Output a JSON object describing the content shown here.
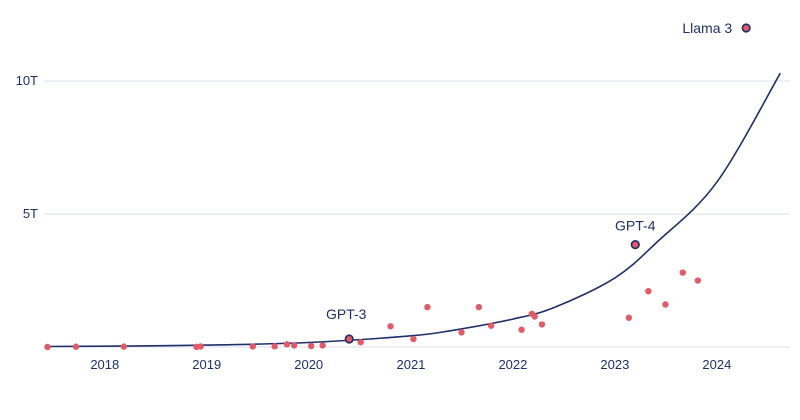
{
  "chart_data": {
    "type": "scatter",
    "title": "",
    "xlabel": "",
    "ylabel": "",
    "x_axis": {
      "type": "date",
      "range": [
        "2017-06-01",
        "2024-09-01"
      ],
      "ticks": [
        {
          "value": "2018-01-01",
          "label": "2018"
        },
        {
          "value": "2019-01-01",
          "label": "2019"
        },
        {
          "value": "2020-01-01",
          "label": "2020"
        },
        {
          "value": "2021-01-01",
          "label": "2021"
        },
        {
          "value": "2022-01-01",
          "label": "2022"
        },
        {
          "value": "2023-01-01",
          "label": "2023"
        },
        {
          "value": "2024-01-01",
          "label": "2024"
        }
      ]
    },
    "y_axis": {
      "range": [
        0,
        12000000000000
      ],
      "ticks": [
        {
          "value": 5000000000000,
          "label": "5T"
        },
        {
          "value": 10000000000000,
          "label": "10T"
        }
      ],
      "gridlines": true
    },
    "grid": true,
    "colors": {
      "points": "#e05a68",
      "highlight_fill": "#e05a68",
      "highlight_stroke": "#1f2f6b",
      "trend": "#1f2f6b",
      "grid": "#d9dfea",
      "text": "#1f2f6b"
    },
    "points": [
      {
        "x": "2017-06-10",
        "y": 0
      },
      {
        "x": "2017-09-20",
        "y": 10000000000
      },
      {
        "x": "2018-03-10",
        "y": 15000000000
      },
      {
        "x": "2018-11-25",
        "y": 5000000000
      },
      {
        "x": "2018-12-10",
        "y": 20000000000
      },
      {
        "x": "2019-06-15",
        "y": 20000000000
      },
      {
        "x": "2019-09-01",
        "y": 25000000000
      },
      {
        "x": "2019-10-15",
        "y": 100000000000
      },
      {
        "x": "2019-11-10",
        "y": 60000000000
      },
      {
        "x": "2020-01-10",
        "y": 40000000000
      },
      {
        "x": "2020-02-20",
        "y": 60000000000
      },
      {
        "x": "2020-07-05",
        "y": 180000000000
      },
      {
        "x": "2020-10-20",
        "y": 780000000000
      },
      {
        "x": "2021-01-10",
        "y": 300000000000
      },
      {
        "x": "2021-03-01",
        "y": 1500000000000
      },
      {
        "x": "2021-07-01",
        "y": 550000000000
      },
      {
        "x": "2021-09-01",
        "y": 1500000000000
      },
      {
        "x": "2021-10-15",
        "y": 800000000000
      },
      {
        "x": "2022-02-01",
        "y": 650000000000
      },
      {
        "x": "2022-03-10",
        "y": 1250000000000
      },
      {
        "x": "2022-03-20",
        "y": 1150000000000
      },
      {
        "x": "2022-04-15",
        "y": 850000000000
      },
      {
        "x": "2023-02-20",
        "y": 1100000000000
      },
      {
        "x": "2023-05-01",
        "y": 2100000000000
      },
      {
        "x": "2023-07-01",
        "y": 1600000000000
      },
      {
        "x": "2023-09-01",
        "y": 2800000000000
      },
      {
        "x": "2023-10-25",
        "y": 2500000000000
      }
    ],
    "annotations": [
      {
        "label": "GPT-3",
        "x": "2020-05-25",
        "y": 300000000000
      },
      {
        "label": "GPT-4",
        "x": "2023-03-15",
        "y": 3850000000000
      },
      {
        "label": "Llama 3",
        "x": "2024-04-15",
        "y": 12000000000000
      }
    ],
    "trend": {
      "type": "exponential",
      "x": [
        "2017-06-01",
        "2018-01-01",
        "2019-01-01",
        "2020-01-01",
        "2021-01-01",
        "2021-06-01",
        "2022-01-01",
        "2022-06-01",
        "2023-01-01",
        "2023-06-01",
        "2024-01-01",
        "2024-08-15"
      ],
      "y": [
        20000000000,
        30000000000,
        70000000000,
        170000000000,
        420000000000,
        630000000000,
        1050000000000,
        1500000000000,
        2600000000000,
        3950000000000,
        6200000000000,
        10300000000000
      ]
    }
  }
}
